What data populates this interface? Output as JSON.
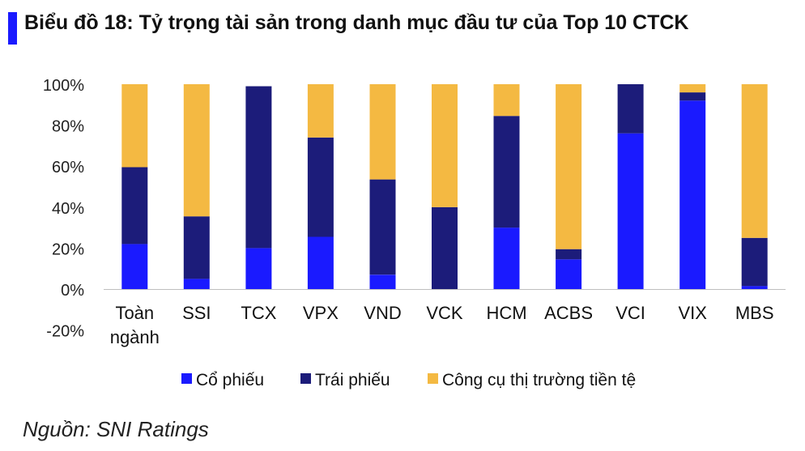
{
  "title": "Biểu đồ 18: Tỷ trọng tài sản trong danh mục đầu tư của Top 10 CTCK",
  "source": "Nguồn: SNI Ratings",
  "colors": {
    "title_bar": "#1a1aff",
    "co_phieu": "#1a1aff",
    "trai_phieu": "#1c1c7a",
    "cong_cu": "#f4b942",
    "axis": "#bfbfbf"
  },
  "chart_data": {
    "type": "bar",
    "stacked": true,
    "title": "",
    "xlabel": "",
    "ylabel": "",
    "ylim": [
      -20,
      100
    ],
    "yticks": [
      -20,
      0,
      20,
      40,
      60,
      80,
      100
    ],
    "ytick_labels": [
      "-20%",
      "0%",
      "20%",
      "40%",
      "60%",
      "80%",
      "100%"
    ],
    "categories": [
      "Toàn ngành",
      "SSI",
      "TCX",
      "VPX",
      "VND",
      "VCK",
      "HCM",
      "ACBS",
      "VCI",
      "VIX",
      "MBS"
    ],
    "category_lines": [
      [
        "Toàn",
        "ngành"
      ],
      [
        "SSI"
      ],
      [
        "TCX"
      ],
      [
        "VPX"
      ],
      [
        "VND"
      ],
      [
        "VCK"
      ],
      [
        "HCM"
      ],
      [
        "ACBS"
      ],
      [
        "VCI"
      ],
      [
        "VIX"
      ],
      [
        "MBS"
      ]
    ],
    "series": [
      {
        "name": "Cổ phiếu",
        "color": "#1a1aff",
        "values": [
          22,
          5,
          20,
          25.5,
          7,
          0,
          30,
          14.5,
          76,
          92,
          1.5
        ]
      },
      {
        "name": "Trái phiếu",
        "color": "#1c1c7a",
        "values": [
          37.5,
          30.5,
          79,
          48.5,
          46.5,
          40,
          54.5,
          5,
          24,
          4,
          23.5
        ]
      },
      {
        "name": "Công cụ thị trường tiền tệ",
        "color": "#f4b942",
        "values": [
          40.5,
          64.5,
          0,
          26,
          46.5,
          60,
          15.5,
          80.5,
          0,
          4,
          75
        ]
      }
    ],
    "grid": false,
    "legend": "bottom"
  }
}
